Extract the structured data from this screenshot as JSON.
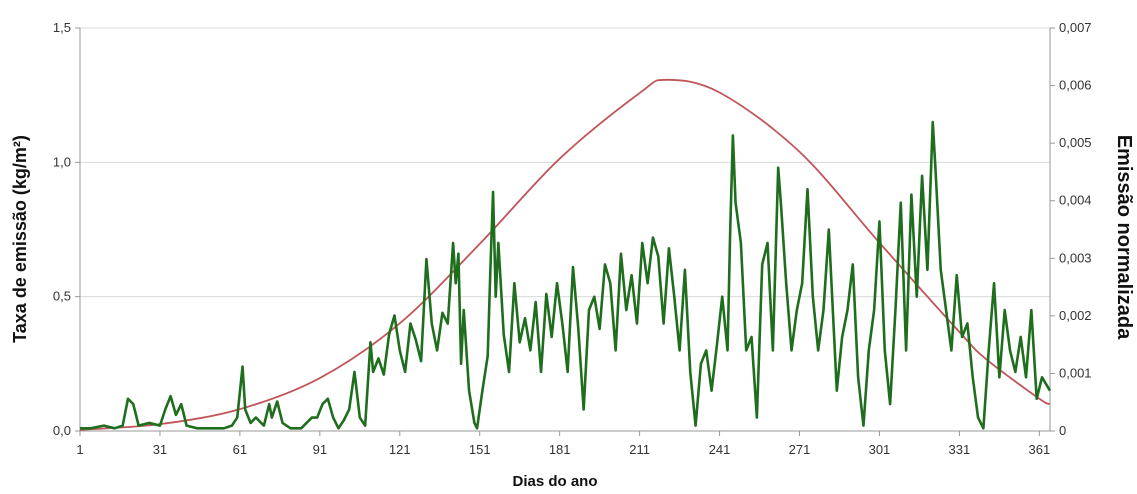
{
  "chart_data": {
    "type": "line",
    "xlabel": "Dias do ano",
    "ylabel_left": "Taxa de emissão (kg/m²)",
    "ylabel_right": "Emissão normalizada",
    "x_ticks": [
      "1",
      "31",
      "61",
      "91",
      "121",
      "151",
      "181",
      "211",
      "241",
      "271",
      "301",
      "331",
      "361"
    ],
    "y_left_ticks": [
      "0,0",
      "0,5",
      "1,0",
      "1,5"
    ],
    "y_right_ticks": [
      "0",
      "0,001",
      "0,002",
      "0,003",
      "0,004",
      "0,005",
      "0,006",
      "0,007"
    ],
    "xlim": [
      1,
      365
    ],
    "ylim_left": [
      0,
      1.5
    ],
    "ylim_right": [
      0,
      0.007
    ],
    "grid": "horizontal",
    "colors": {
      "emission": "#1e6e1e",
      "normalized": "#c0555a",
      "grid": "#d9d9d9",
      "axis": "#999999"
    },
    "series": [
      {
        "axis": "left",
        "points": [
          [
            1,
            0.01
          ],
          [
            5,
            0.01
          ],
          [
            10,
            0.02
          ],
          [
            14,
            0.01
          ],
          [
            17,
            0.02
          ],
          [
            19,
            0.12
          ],
          [
            21,
            0.1
          ],
          [
            23,
            0.02
          ],
          [
            27,
            0.03
          ],
          [
            31,
            0.02
          ],
          [
            33,
            0.08
          ],
          [
            35,
            0.13
          ],
          [
            37,
            0.06
          ],
          [
            39,
            0.1
          ],
          [
            41,
            0.02
          ],
          [
            45,
            0.01
          ],
          [
            50,
            0.01
          ],
          [
            55,
            0.01
          ],
          [
            58,
            0.02
          ],
          [
            60,
            0.05
          ],
          [
            62,
            0.24
          ],
          [
            63,
            0.08
          ],
          [
            65,
            0.03
          ],
          [
            67,
            0.05
          ],
          [
            70,
            0.02
          ],
          [
            72,
            0.1
          ],
          [
            73,
            0.05
          ],
          [
            75,
            0.11
          ],
          [
            77,
            0.03
          ],
          [
            80,
            0.01
          ],
          [
            84,
            0.01
          ],
          [
            86,
            0.03
          ],
          [
            88,
            0.05
          ],
          [
            90,
            0.05
          ],
          [
            92,
            0.1
          ],
          [
            94,
            0.12
          ],
          [
            96,
            0.05
          ],
          [
            98,
            0.01
          ],
          [
            100,
            0.04
          ],
          [
            102,
            0.08
          ],
          [
            104,
            0.22
          ],
          [
            106,
            0.05
          ],
          [
            108,
            0.02
          ],
          [
            110,
            0.33
          ],
          [
            111,
            0.22
          ],
          [
            113,
            0.27
          ],
          [
            115,
            0.21
          ],
          [
            117,
            0.36
          ],
          [
            119,
            0.43
          ],
          [
            121,
            0.3
          ],
          [
            123,
            0.22
          ],
          [
            125,
            0.4
          ],
          [
            127,
            0.34
          ],
          [
            129,
            0.26
          ],
          [
            131,
            0.64
          ],
          [
            133,
            0.4
          ],
          [
            135,
            0.3
          ],
          [
            137,
            0.44
          ],
          [
            139,
            0.4
          ],
          [
            141,
            0.7
          ],
          [
            142,
            0.55
          ],
          [
            143,
            0.66
          ],
          [
            144,
            0.25
          ],
          [
            145,
            0.45
          ],
          [
            147,
            0.15
          ],
          [
            149,
            0.03
          ],
          [
            150,
            0.01
          ],
          [
            152,
            0.15
          ],
          [
            154,
            0.28
          ],
          [
            155,
            0.6
          ],
          [
            156,
            0.89
          ],
          [
            157,
            0.5
          ],
          [
            158,
            0.7
          ],
          [
            160,
            0.36
          ],
          [
            162,
            0.22
          ],
          [
            164,
            0.55
          ],
          [
            166,
            0.33
          ],
          [
            168,
            0.42
          ],
          [
            170,
            0.3
          ],
          [
            172,
            0.48
          ],
          [
            174,
            0.22
          ],
          [
            176,
            0.51
          ],
          [
            178,
            0.35
          ],
          [
            180,
            0.55
          ],
          [
            182,
            0.4
          ],
          [
            184,
            0.22
          ],
          [
            186,
            0.61
          ],
          [
            188,
            0.38
          ],
          [
            190,
            0.08
          ],
          [
            192,
            0.45
          ],
          [
            194,
            0.5
          ],
          [
            196,
            0.38
          ],
          [
            198,
            0.62
          ],
          [
            200,
            0.55
          ],
          [
            202,
            0.3
          ],
          [
            204,
            0.66
          ],
          [
            206,
            0.45
          ],
          [
            208,
            0.58
          ],
          [
            210,
            0.4
          ],
          [
            212,
            0.7
          ],
          [
            214,
            0.55
          ],
          [
            216,
            0.72
          ],
          [
            218,
            0.65
          ],
          [
            220,
            0.4
          ],
          [
            222,
            0.68
          ],
          [
            224,
            0.5
          ],
          [
            226,
            0.3
          ],
          [
            228,
            0.6
          ],
          [
            230,
            0.22
          ],
          [
            232,
            0.02
          ],
          [
            234,
            0.25
          ],
          [
            236,
            0.3
          ],
          [
            238,
            0.15
          ],
          [
            240,
            0.32
          ],
          [
            242,
            0.5
          ],
          [
            244,
            0.3
          ],
          [
            245,
            0.75
          ],
          [
            246,
            1.1
          ],
          [
            247,
            0.85
          ],
          [
            249,
            0.7
          ],
          [
            251,
            0.3
          ],
          [
            253,
            0.35
          ],
          [
            255,
            0.05
          ],
          [
            257,
            0.62
          ],
          [
            259,
            0.7
          ],
          [
            261,
            0.3
          ],
          [
            263,
            0.98
          ],
          [
            264,
            0.85
          ],
          [
            266,
            0.55
          ],
          [
            268,
            0.3
          ],
          [
            270,
            0.45
          ],
          [
            272,
            0.55
          ],
          [
            274,
            0.9
          ],
          [
            276,
            0.5
          ],
          [
            278,
            0.3
          ],
          [
            280,
            0.45
          ],
          [
            282,
            0.75
          ],
          [
            283,
            0.55
          ],
          [
            285,
            0.15
          ],
          [
            287,
            0.35
          ],
          [
            289,
            0.45
          ],
          [
            291,
            0.62
          ],
          [
            293,
            0.2
          ],
          [
            295,
            0.02
          ],
          [
            297,
            0.3
          ],
          [
            299,
            0.45
          ],
          [
            301,
            0.78
          ],
          [
            303,
            0.3
          ],
          [
            305,
            0.1
          ],
          [
            307,
            0.45
          ],
          [
            309,
            0.85
          ],
          [
            311,
            0.3
          ],
          [
            313,
            0.88
          ],
          [
            315,
            0.5
          ],
          [
            317,
            0.95
          ],
          [
            319,
            0.6
          ],
          [
            321,
            1.15
          ],
          [
            322,
            0.98
          ],
          [
            324,
            0.6
          ],
          [
            326,
            0.45
          ],
          [
            328,
            0.3
          ],
          [
            330,
            0.58
          ],
          [
            332,
            0.35
          ],
          [
            334,
            0.4
          ],
          [
            336,
            0.2
          ],
          [
            338,
            0.05
          ],
          [
            340,
            0.01
          ],
          [
            342,
            0.3
          ],
          [
            344,
            0.55
          ],
          [
            346,
            0.2
          ],
          [
            348,
            0.45
          ],
          [
            350,
            0.3
          ],
          [
            352,
            0.22
          ],
          [
            354,
            0.35
          ],
          [
            356,
            0.2
          ],
          [
            358,
            0.45
          ],
          [
            360,
            0.12
          ],
          [
            362,
            0.2
          ],
          [
            365,
            0.15
          ]
        ]
      },
      {
        "axis": "right",
        "points": [
          [
            1,
            2e-05
          ],
          [
            31,
            0.00012
          ],
          [
            61,
            0.00038
          ],
          [
            91,
            0.00092
          ],
          [
            121,
            0.00187
          ],
          [
            151,
            0.00325
          ],
          [
            181,
            0.00473
          ],
          [
            211,
            0.00587
          ],
          [
            221,
            0.0061
          ],
          [
            241,
            0.00588
          ],
          [
            271,
            0.00485
          ],
          [
            301,
            0.00327
          ],
          [
            331,
            0.00172
          ],
          [
            341,
            0.00125
          ],
          [
            361,
            0.00056
          ],
          [
            365,
            0.00047
          ]
        ]
      }
    ]
  }
}
